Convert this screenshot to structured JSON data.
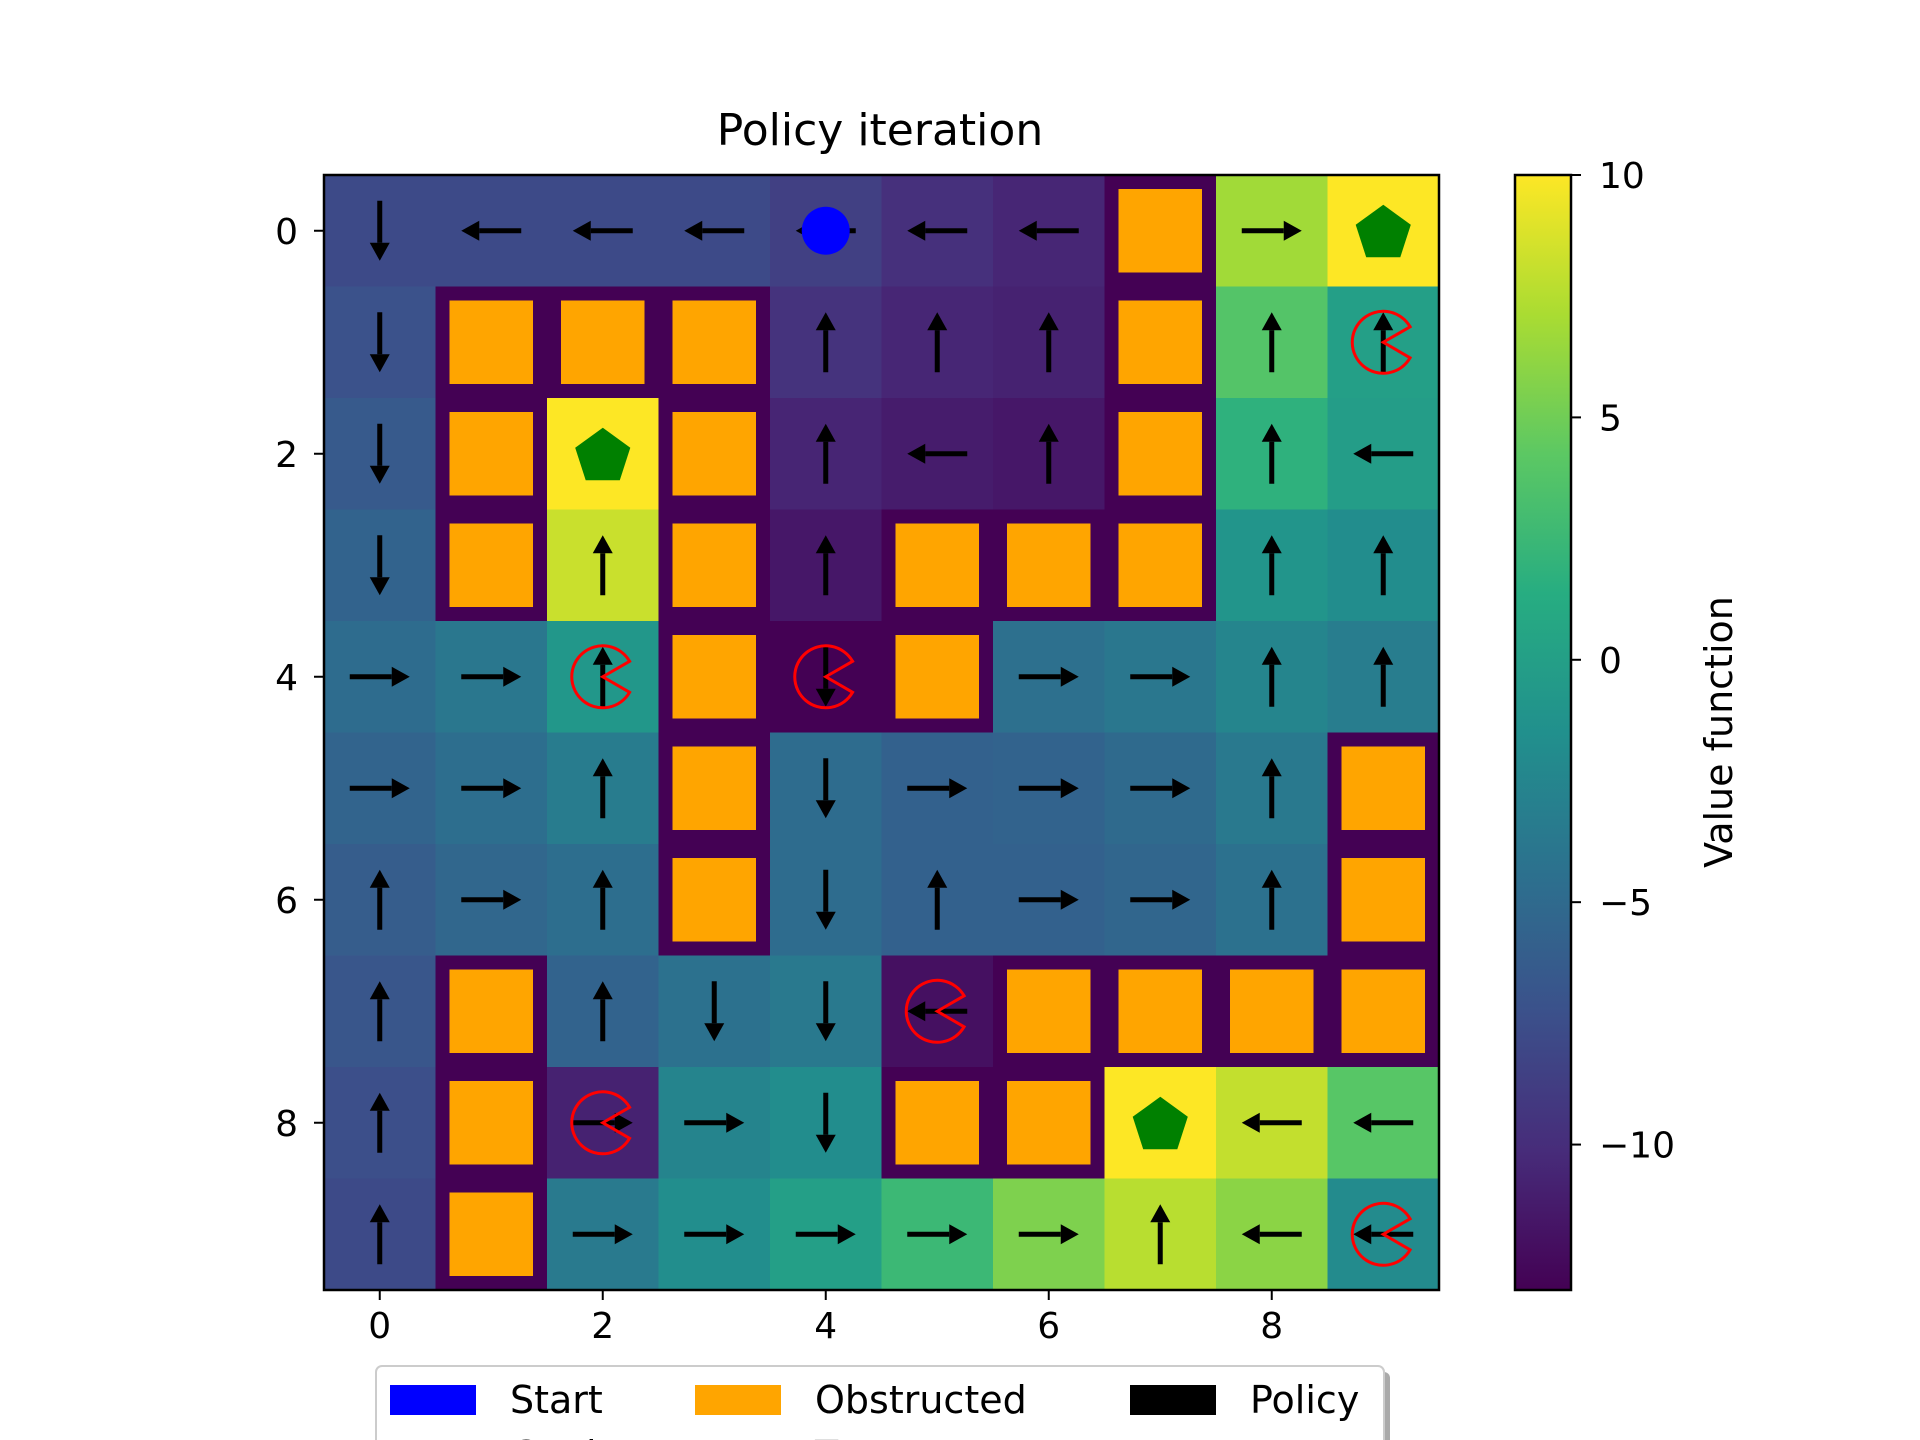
{
  "chart_data": {
    "type": "heatmap",
    "title": "Policy iteration",
    "xlabel": "",
    "ylabel": "",
    "xticks": [
      0,
      2,
      4,
      6,
      8
    ],
    "yticks": [
      0,
      2,
      4,
      6,
      8
    ],
    "xlim": [
      -0.5,
      9.5
    ],
    "ylim": [
      9.5,
      -0.5
    ],
    "colorbar": {
      "label": "Value function",
      "range": [
        -13,
        10
      ],
      "ticks": [
        10,
        5,
        0,
        -5,
        -10
      ],
      "tick_labels": [
        "10",
        "5",
        "0",
        "−5",
        "−10"
      ],
      "colormap": "viridis"
    },
    "values": [
      [
        -7.8,
        -7.8,
        -7.8,
        -7.8,
        -8.6,
        -9.8,
        -10.5,
        -13,
        6.8,
        10
      ],
      [
        -7.2,
        -13,
        -13,
        -13,
        -9.6,
        -10.5,
        -10.8,
        -13,
        3.8,
        0.0
      ],
      [
        -6.4,
        -13,
        10,
        -13,
        -10.6,
        -11.2,
        -11.5,
        -13,
        1.8,
        -0.2
      ],
      [
        -5.6,
        -13,
        8.2,
        -13,
        -11.5,
        -13,
        -13,
        -13,
        -1.0,
        -1.8
      ],
      [
        -4.8,
        -3.8,
        -0.8,
        -13,
        -13,
        -13,
        -4.5,
        -3.8,
        -2.5,
        -3.3
      ],
      [
        -5.5,
        -4.6,
        -3.4,
        -13,
        -4.8,
        -5.8,
        -5.6,
        -5.0,
        -3.6,
        -13
      ],
      [
        -6.2,
        -5.3,
        -4.6,
        -13,
        -4.8,
        -5.8,
        -5.8,
        -5.4,
        -4.4,
        -13
      ],
      [
        -6.8,
        -13,
        -5.6,
        -4.4,
        -3.6,
        -12.0,
        -13,
        -13,
        -13,
        -13
      ],
      [
        -7.4,
        -13,
        -10.8,
        -2.6,
        -1.8,
        -13,
        -13,
        10,
        8.0,
        4.0
      ],
      [
        -7.8,
        -13,
        -3.5,
        -1.7,
        0.0,
        2.5,
        5.5,
        7.6,
        6.0,
        -2.0
      ]
    ],
    "obstructed": [
      [
        0,
        7
      ],
      [
        1,
        1
      ],
      [
        1,
        2
      ],
      [
        1,
        3
      ],
      [
        1,
        7
      ],
      [
        2,
        1
      ],
      [
        2,
        3
      ],
      [
        2,
        7
      ],
      [
        3,
        1
      ],
      [
        3,
        3
      ],
      [
        3,
        5
      ],
      [
        3,
        6
      ],
      [
        3,
        7
      ],
      [
        4,
        3
      ],
      [
        4,
        5
      ],
      [
        5,
        3
      ],
      [
        5,
        9
      ],
      [
        6,
        3
      ],
      [
        6,
        9
      ],
      [
        7,
        1
      ],
      [
        7,
        6
      ],
      [
        7,
        7
      ],
      [
        7,
        8
      ],
      [
        7,
        9
      ],
      [
        8,
        1
      ],
      [
        8,
        5
      ],
      [
        8,
        6
      ],
      [
        9,
        1
      ]
    ],
    "start": [
      0,
      4
    ],
    "goals": [
      [
        0,
        9
      ],
      [
        2,
        2
      ],
      [
        8,
        7
      ]
    ],
    "traps": [
      [
        1,
        9
      ],
      [
        4,
        2
      ],
      [
        4,
        4
      ],
      [
        7,
        5
      ],
      [
        8,
        2
      ],
      [
        9,
        9
      ]
    ],
    "policy": [
      [
        "D",
        "L",
        "L",
        "L",
        "L",
        "L",
        "L",
        null,
        "R",
        null
      ],
      [
        "D",
        null,
        null,
        null,
        "U",
        "U",
        "U",
        null,
        "U",
        "U"
      ],
      [
        "D",
        null,
        null,
        null,
        "U",
        "L",
        "U",
        null,
        "U",
        "L"
      ],
      [
        "D",
        null,
        "U",
        null,
        "U",
        null,
        null,
        null,
        "U",
        "U"
      ],
      [
        "R",
        "R",
        "U",
        null,
        "D",
        null,
        "R",
        "R",
        "U",
        "U"
      ],
      [
        "R",
        "R",
        "U",
        null,
        "D",
        "R",
        "R",
        "R",
        "U",
        null
      ],
      [
        "U",
        "R",
        "U",
        null,
        "D",
        "U",
        "R",
        "R",
        "U",
        null
      ],
      [
        "U",
        null,
        "U",
        "D",
        "D",
        "L",
        null,
        null,
        null,
        null
      ],
      [
        "U",
        null,
        "R",
        "R",
        "D",
        null,
        null,
        null,
        "L",
        "L"
      ],
      [
        "U",
        null,
        "R",
        "R",
        "R",
        "R",
        "R",
        "U",
        "L",
        "L"
      ]
    ],
    "colors": {
      "obstructed": "#ffa500",
      "obstructed_bg": "#440154",
      "start": "#0000ff",
      "goal": "#008000",
      "trap": "#ff0000",
      "policy": "#000000"
    },
    "legend": {
      "placement": "bottom",
      "entries": [
        {
          "label": "Start",
          "color": "#0000ff"
        },
        {
          "label": "Obstructed",
          "color": "#ffa500"
        },
        {
          "label": "Policy",
          "color": "#000000"
        },
        {
          "label": "Goal",
          "color": "#008000"
        },
        {
          "label": "Trap",
          "color": "#ff0000"
        }
      ]
    }
  }
}
